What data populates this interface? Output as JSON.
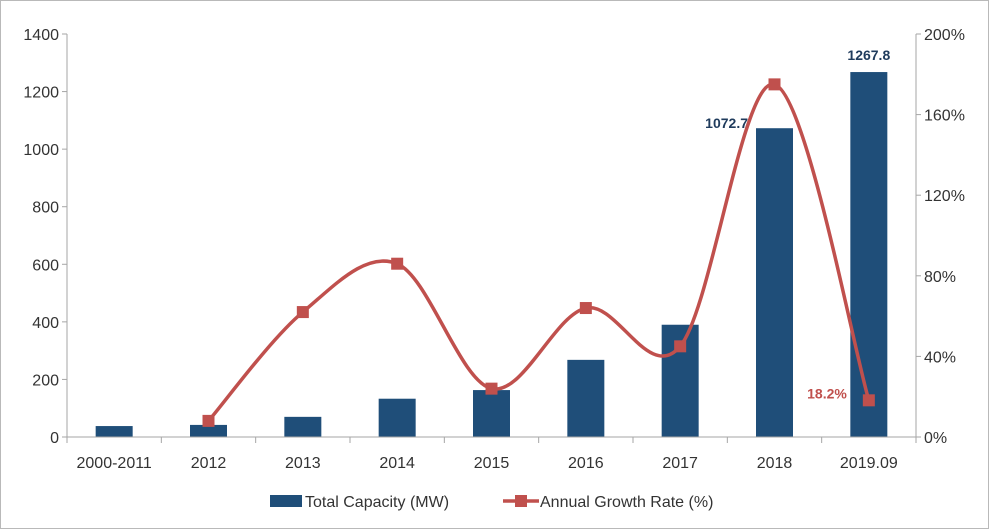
{
  "chart_data": {
    "type": "bar",
    "categories": [
      "2000-2011",
      "2012",
      "2013",
      "2014",
      "2015",
      "2016",
      "2017",
      "2018",
      "2019.09"
    ],
    "ylim": [
      0,
      1400
    ],
    "y_ticks": [
      "0",
      "200",
      "400",
      "600",
      "800",
      "1000",
      "1200",
      "1400"
    ],
    "y2lim": [
      0,
      200
    ],
    "y2_ticks": [
      "0%",
      "40%",
      "80%",
      "120%",
      "160%",
      "200%"
    ],
    "grid": false,
    "legend_position": "bottom",
    "series": [
      {
        "name": "Total Capacity (MW)",
        "type": "bar",
        "axis": "left",
        "color": "#1f4e79",
        "values": [
          38,
          42,
          70,
          133,
          163,
          268,
          390,
          1072.7,
          1267.8
        ]
      },
      {
        "name": "Annual Growth Rate (%)",
        "type": "line",
        "axis": "right",
        "smooth": true,
        "color": "#c0504d",
        "values": [
          null,
          8,
          62,
          86,
          24,
          64,
          45,
          175,
          18.2
        ]
      }
    ],
    "annotations": [
      {
        "text": "1072.7",
        "category_index": 7,
        "series": 0,
        "color": "#1f3b5c"
      },
      {
        "text": "1267.8",
        "category_index": 8,
        "series": 0,
        "color": "#1f3b5c"
      },
      {
        "text": "18.2%",
        "category_index": 8,
        "series": 1,
        "color": "#c0504d"
      }
    ]
  }
}
